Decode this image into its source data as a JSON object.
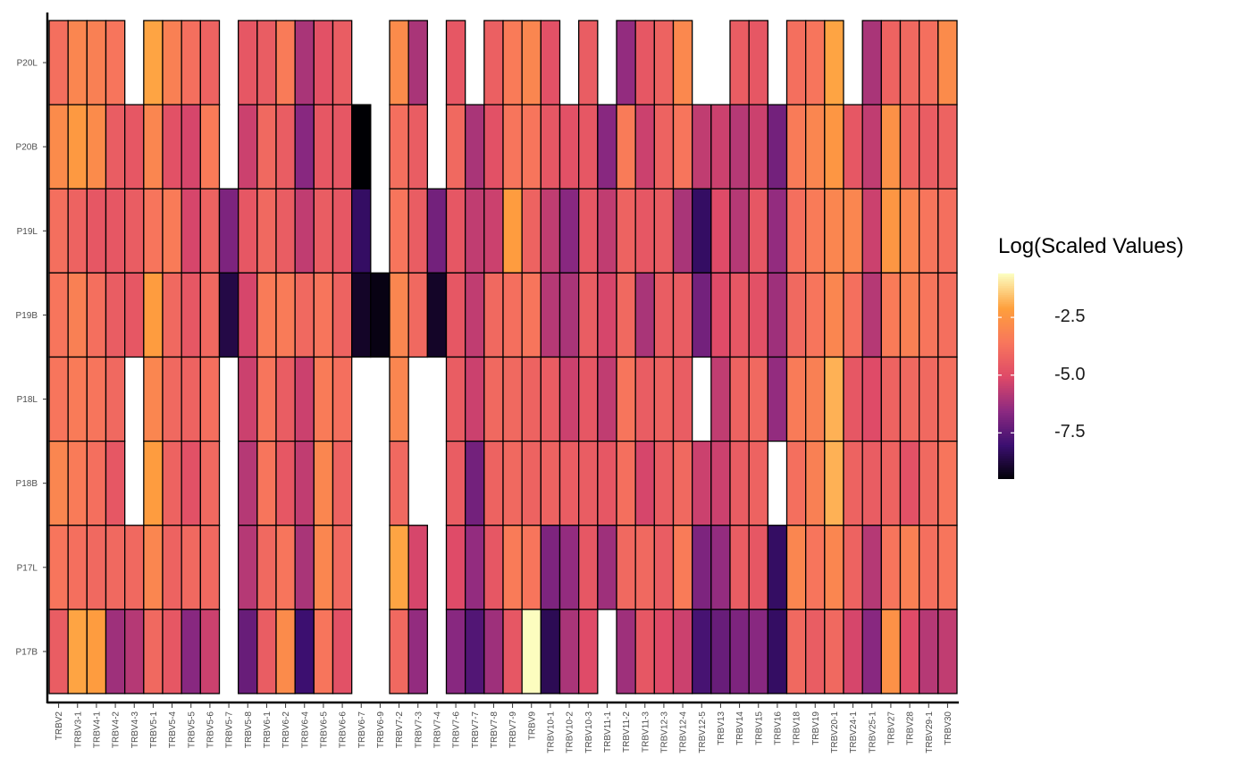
{
  "chart_data": {
    "type": "heatmap",
    "x_categories": [
      "TRBV2",
      "TRBV3-1",
      "TRBV4-1",
      "TRBV4-2",
      "TRBV4-3",
      "TRBV5-1",
      "TRBV5-4",
      "TRBV5-5",
      "TRBV5-6",
      "TRBV5-7",
      "TRBV5-8",
      "TRBV6-1",
      "TRBV6-2",
      "TRBV6-4",
      "TRBV6-5",
      "TRBV6-6",
      "TRBV6-7",
      "TRBV6-9",
      "TRBV7-2",
      "TRBV7-3",
      "TRBV7-4",
      "TRBV7-6",
      "TRBV7-7",
      "TRBV7-8",
      "TRBV7-9",
      "TRBV9",
      "TRBV10-1",
      "TRBV10-2",
      "TRBV10-3",
      "TRBV11-1",
      "TRBV11-2",
      "TRBV11-3",
      "TRBV12-3",
      "TRBV12-4",
      "TRBV12-5",
      "TRBV13",
      "TRBV14",
      "TRBV15",
      "TRBV16",
      "TRBV18",
      "TRBV19",
      "TRBV20-1",
      "TRBV24-1",
      "TRBV25-1",
      "TRBV27",
      "TRBV28",
      "TRBV29-1",
      "TRBV30"
    ],
    "y_categories": [
      "P20L",
      "P20B",
      "P19L",
      "P19B",
      "P18L",
      "P18B",
      "P17L",
      "P17B"
    ],
    "values": [
      [
        -3.8,
        -3.0,
        -3.2,
        -3.6,
        null,
        -2.0,
        -3.2,
        -3.8,
        -4.2,
        null,
        -4.6,
        -4.4,
        -3.4,
        -6.0,
        -4.8,
        -4.4,
        null,
        null,
        -2.8,
        -6.0,
        null,
        -4.6,
        null,
        -4.3,
        -3.4,
        -3.0,
        -4.8,
        null,
        -4.4,
        null,
        -6.4,
        -4.6,
        -4.2,
        -2.9,
        null,
        null,
        -4.4,
        -4.6,
        null,
        -3.8,
        -3.6,
        -2.0,
        null,
        -6.0,
        -4.2,
        -4.0,
        -3.8,
        -2.8
      ],
      [
        -2.8,
        -2.3,
        -2.8,
        -4.4,
        -4.6,
        -3.0,
        -4.8,
        -5.2,
        -3.4,
        null,
        -5.4,
        -4.0,
        -4.4,
        -6.6,
        -4.6,
        -4.6,
        -9.5,
        null,
        -3.8,
        -4.4,
        null,
        -4.0,
        -6.0,
        -4.8,
        -3.6,
        -3.6,
        -4.6,
        -4.8,
        -4.6,
        -6.6,
        -3.4,
        -5.4,
        -4.2,
        -3.6,
        -5.6,
        -5.4,
        -5.8,
        -5.4,
        -7.0,
        -3.4,
        -3.0,
        -2.4,
        -4.6,
        -5.6,
        -2.6,
        -4.2,
        -4.4,
        -4.2
      ],
      [
        -3.8,
        -4.2,
        -4.6,
        -4.6,
        -4.4,
        -3.6,
        -3.4,
        -5.2,
        -4.2,
        -6.8,
        -4.6,
        -4.0,
        -4.4,
        -5.6,
        -4.4,
        -4.6,
        -8.2,
        null,
        -3.6,
        -4.4,
        -7.0,
        -4.6,
        -5.6,
        -5.4,
        -2.2,
        -4.2,
        -5.6,
        -6.6,
        -4.6,
        -5.6,
        -4.2,
        -4.6,
        -4.4,
        -6.0,
        -8.2,
        -5.0,
        -5.8,
        -4.6,
        -6.4,
        -3.8,
        -3.4,
        -3.0,
        -3.0,
        -5.4,
        -2.4,
        -3.0,
        -3.6,
        -3.8
      ],
      [
        -3.6,
        -3.2,
        -3.8,
        -4.4,
        -4.6,
        -2.2,
        -4.0,
        -4.6,
        -4.0,
        -8.6,
        -5.2,
        -3.4,
        -3.4,
        -4.0,
        -3.6,
        -4.2,
        -9.0,
        -9.3,
        -3.0,
        -4.0,
        -9.0,
        -4.6,
        -5.6,
        -4.0,
        -3.8,
        -3.6,
        -5.8,
        -6.0,
        -4.4,
        -5.2,
        -4.0,
        -6.0,
        -4.4,
        -4.4,
        -7.0,
        -5.0,
        -4.6,
        -4.8,
        -6.2,
        -4.0,
        -3.6,
        -3.0,
        -3.8,
        -5.8,
        -3.4,
        -3.2,
        -3.6,
        -3.8
      ],
      [
        -3.6,
        -3.4,
        -3.6,
        -4.0,
        null,
        -3.0,
        -4.0,
        -4.2,
        -3.8,
        null,
        -5.4,
        -3.6,
        -4.4,
        -5.4,
        -3.4,
        -3.8,
        null,
        null,
        -3.0,
        null,
        null,
        -4.4,
        -5.4,
        -4.0,
        -4.0,
        -4.2,
        -4.4,
        -5.4,
        -4.6,
        -5.6,
        -3.6,
        -4.4,
        -4.2,
        -4.4,
        null,
        -5.6,
        -4.2,
        -4.0,
        -6.4,
        -3.4,
        -3.2,
        -1.8,
        -4.6,
        -5.0,
        -4.2,
        -4.0,
        -4.0,
        -3.8
      ],
      [
        -3.0,
        -3.4,
        -3.8,
        -4.6,
        null,
        -2.2,
        -4.2,
        -4.8,
        -4.0,
        null,
        -5.8,
        -3.6,
        -4.6,
        -5.6,
        -3.0,
        -4.2,
        null,
        null,
        -4.0,
        null,
        null,
        -4.4,
        -7.0,
        -4.2,
        -4.0,
        -4.2,
        -4.2,
        -4.4,
        -4.4,
        -4.6,
        -3.8,
        -5.2,
        -4.4,
        -4.0,
        -5.4,
        -5.4,
        -4.4,
        -4.2,
        null,
        -3.8,
        -3.2,
        -1.8,
        -4.2,
        -4.4,
        -4.2,
        -4.8,
        -4.0,
        -3.6
      ],
      [
        -3.6,
        -3.8,
        -4.0,
        -4.0,
        -4.0,
        -3.0,
        -4.2,
        -4.0,
        -4.0,
        null,
        -5.8,
        -4.0,
        -3.6,
        -6.0,
        -3.0,
        -4.0,
        null,
        null,
        -2.0,
        -5.2,
        null,
        -5.0,
        -6.4,
        -4.6,
        -3.4,
        -3.6,
        -6.8,
        -6.4,
        -4.6,
        -6.2,
        -4.0,
        -4.0,
        -4.4,
        -3.4,
        -6.8,
        -6.4,
        -4.4,
        -4.6,
        -8.2,
        -3.0,
        -3.6,
        -3.0,
        -4.2,
        -5.8,
        -3.6,
        -3.2,
        -3.8,
        -3.6
      ],
      [
        -4.4,
        -2.0,
        -2.2,
        -6.2,
        -5.8,
        -4.0,
        -4.6,
        -6.6,
        -5.4,
        null,
        -7.2,
        -4.4,
        -2.8,
        -8.0,
        -3.6,
        -4.8,
        null,
        null,
        -4.0,
        -6.4,
        null,
        -6.6,
        -7.6,
        -6.2,
        -4.6,
        -0.6,
        -8.4,
        -6.0,
        -5.0,
        null,
        -6.2,
        -4.6,
        -5.0,
        -5.4,
        -7.8,
        -7.2,
        -6.8,
        -6.6,
        -8.2,
        -4.0,
        -4.4,
        -4.0,
        -5.2,
        -6.6,
        -2.6,
        -5.0,
        -5.8,
        -5.6
      ]
    ],
    "legend_title": "Log(Scaled Values)",
    "colorbar_ticks": [
      -2.5,
      -5.0,
      -7.5
    ],
    "colorbar_tick_labels": [
      "-2.5",
      "-5.0",
      "-7.5"
    ],
    "color_range": [
      -9.5,
      -0.6
    ],
    "colorscale": [
      "#000004",
      "#3b0f70",
      "#8c2981",
      "#de4968",
      "#f8765c",
      "#fe9f3c",
      "#fcfdbf"
    ],
    "missing_color": "#ffffff",
    "cell_border_color": "#000000",
    "grid": false,
    "legend_position": "right"
  }
}
